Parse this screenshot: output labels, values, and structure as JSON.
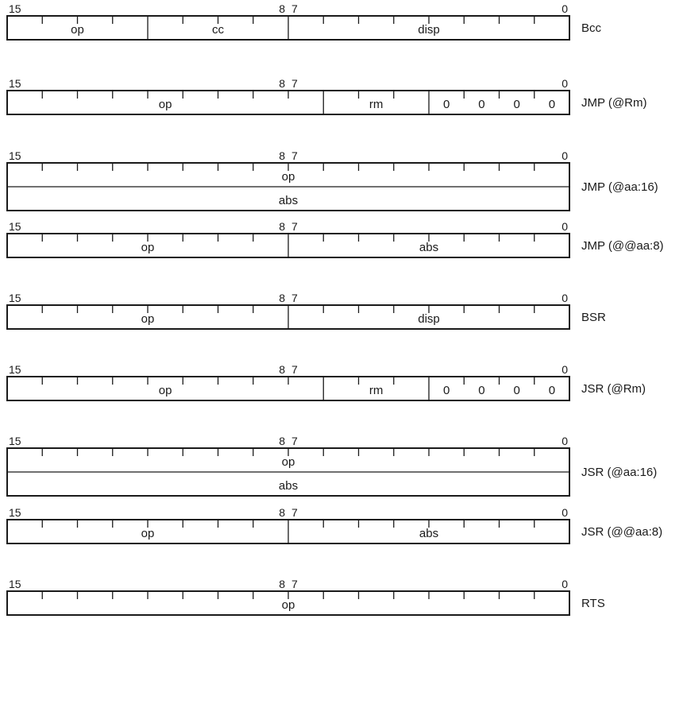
{
  "bit_labels": {
    "b15": "15",
    "b8": "8",
    "b7": "7",
    "b0": "0"
  },
  "formats": [
    {
      "name": "Bcc",
      "rows": 1,
      "fields": [
        {
          "from": 15,
          "to": 12,
          "text": "op"
        },
        {
          "from": 11,
          "to": 8,
          "text": "cc"
        },
        {
          "from": 7,
          "to": 0,
          "text": "disp"
        }
      ]
    },
    {
      "name": "JMP (@Rm)",
      "rows": 1,
      "fields": [
        {
          "from": 15,
          "to": 7,
          "text": "op"
        },
        {
          "from": 6,
          "to": 4,
          "text": "rm"
        },
        {
          "from": 3,
          "to": 0,
          "bits": [
            "0",
            "0",
            "0",
            "0"
          ]
        }
      ]
    },
    {
      "name": "JMP (@aa:16)",
      "rows": 2,
      "fields": [
        {
          "from": 15,
          "to": 0,
          "text": "op"
        }
      ],
      "second_row": "abs"
    },
    {
      "name": "JMP (@@aa:8)",
      "rows": 1,
      "fields": [
        {
          "from": 15,
          "to": 8,
          "text": "op"
        },
        {
          "from": 7,
          "to": 0,
          "text": "abs"
        }
      ]
    },
    {
      "name": "BSR",
      "rows": 1,
      "fields": [
        {
          "from": 15,
          "to": 8,
          "text": "op"
        },
        {
          "from": 7,
          "to": 0,
          "text": "disp"
        }
      ]
    },
    {
      "name": "JSR (@Rm)",
      "rows": 1,
      "fields": [
        {
          "from": 15,
          "to": 7,
          "text": "op"
        },
        {
          "from": 6,
          "to": 4,
          "text": "rm"
        },
        {
          "from": 3,
          "to": 0,
          "bits": [
            "0",
            "0",
            "0",
            "0"
          ]
        }
      ]
    },
    {
      "name": "JSR (@aa:16)",
      "rows": 2,
      "fields": [
        {
          "from": 15,
          "to": 0,
          "text": "op"
        }
      ],
      "second_row": "abs"
    },
    {
      "name": "JSR (@@aa:8)",
      "rows": 1,
      "fields": [
        {
          "from": 15,
          "to": 8,
          "text": "op"
        },
        {
          "from": 7,
          "to": 0,
          "text": "abs"
        }
      ]
    },
    {
      "name": "RTS",
      "rows": 1,
      "fields": [
        {
          "from": 15,
          "to": 0,
          "text": "op"
        }
      ]
    }
  ]
}
